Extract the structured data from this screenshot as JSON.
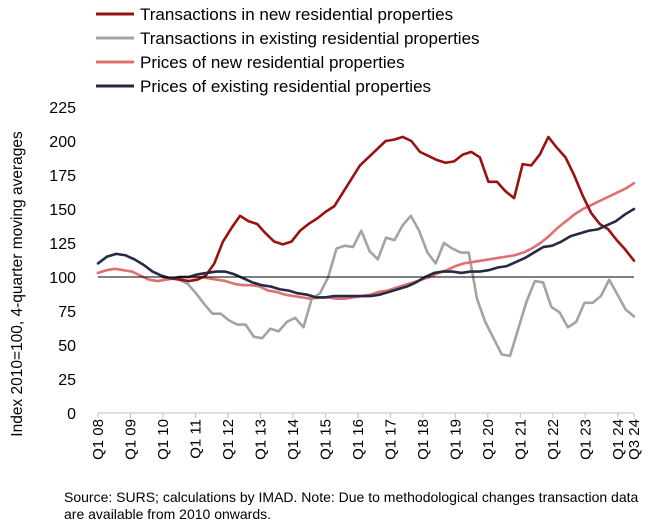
{
  "chart_data": {
    "type": "line",
    "ylabel": "Index 2010=100, 4-quarter moving averages",
    "ylim": [
      0,
      225
    ],
    "yticks": [
      0,
      25,
      50,
      75,
      100,
      125,
      150,
      175,
      200,
      225
    ],
    "reference_line": 100,
    "grid": false,
    "legend_position": "top",
    "x_tick_labels": [
      "Q1 08",
      "Q1 09",
      "Q1 10",
      "Q1 11",
      "Q1 12",
      "Q1 13",
      "Q1 14",
      "Q1 15",
      "Q1 16",
      "Q1 17",
      "Q1 18",
      "Q1 19",
      "Q1 20",
      "Q1 21",
      "Q1 22",
      "Q1 23",
      "Q1 24",
      "Q3 24"
    ],
    "x_range": [
      "Q1 08",
      "Q3 24"
    ],
    "series": [
      {
        "name": "Transactions in new residential properties",
        "color": "#9b1010",
        "start": "Q1 10",
        "values": [
          100,
          99,
          98,
          97,
          98,
          101,
          110,
          126,
          136,
          145,
          141,
          139,
          132,
          126,
          124,
          126,
          134,
          139,
          143,
          148,
          152,
          162,
          172,
          182,
          188,
          194,
          200,
          201,
          203,
          200,
          192,
          189,
          186,
          184,
          185,
          190,
          192,
          188,
          170,
          170,
          163,
          158,
          183,
          182,
          190,
          203,
          195,
          188,
          175,
          160,
          147,
          139,
          135,
          127,
          120,
          112
        ]
      },
      {
        "name": "Transactions in existing residential properties",
        "color": "#a3a3a3",
        "start": "Q1 10",
        "values": [
          100,
          99,
          98,
          95,
          88,
          80,
          73,
          73,
          68,
          65,
          65,
          56,
          55,
          62,
          60,
          67,
          70,
          63,
          84,
          88,
          100,
          121,
          123,
          122,
          134,
          119,
          113,
          129,
          127,
          138,
          145,
          134,
          118,
          110,
          125,
          121,
          118,
          118,
          84,
          67,
          55,
          43,
          42,
          62,
          82,
          97,
          96,
          78,
          74,
          63,
          67,
          81,
          81,
          86,
          98,
          87,
          76,
          71
        ]
      },
      {
        "name": "Prices of new residential properties",
        "color": "#e07070",
        "start": "Q1 08",
        "values": [
          103,
          105,
          106,
          105,
          104,
          101,
          98,
          97,
          98,
          99,
          100,
          100,
          100,
          99,
          98,
          97,
          95,
          94,
          94,
          93,
          90,
          89,
          87,
          86,
          85,
          84,
          85,
          85,
          84,
          84,
          85,
          86,
          87,
          89,
          90,
          92,
          94,
          96,
          98,
          100,
          103,
          105,
          108,
          110,
          111,
          112,
          113,
          114,
          115,
          116,
          118,
          121,
          125,
          130,
          136,
          141,
          146,
          150,
          153,
          156,
          159,
          162,
          165,
          169
        ]
      },
      {
        "name": "Prices of existing residential properties",
        "color": "#252b45",
        "start": "Q1 08",
        "values": [
          110,
          115,
          117,
          116,
          113,
          109,
          104,
          101,
          99,
          100,
          100,
          102,
          103,
          104,
          104,
          102,
          99,
          96,
          94,
          93,
          91,
          90,
          88,
          87,
          85,
          85,
          86,
          86,
          86,
          86,
          86,
          87,
          89,
          91,
          93,
          96,
          100,
          103,
          104,
          104,
          103,
          104,
          104,
          105,
          107,
          108,
          111,
          114,
          118,
          122,
          123,
          126,
          130,
          132,
          134,
          135,
          138,
          141,
          146,
          150
        ]
      }
    ]
  },
  "source_note": "Source: SURS; calculations by IMAD. Note: Due to methodological changes transaction data are available from 2010 onwards."
}
